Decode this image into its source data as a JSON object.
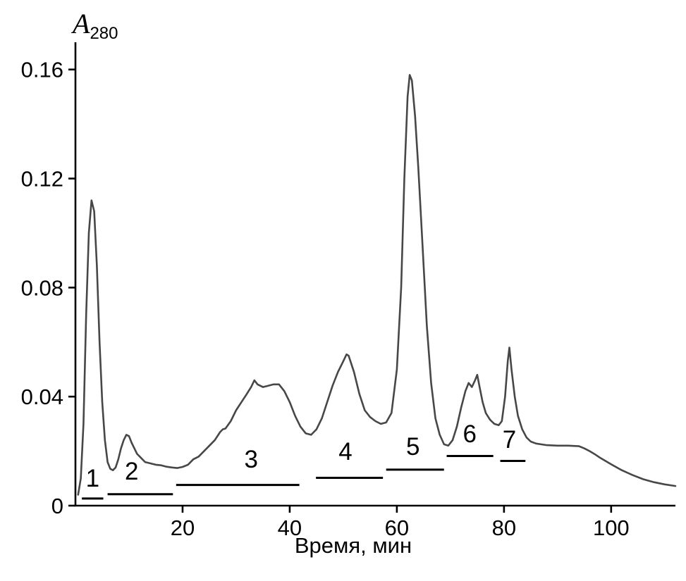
{
  "chart_data": {
    "type": "line",
    "title": "",
    "ylabel": {
      "main": "A",
      "sub": "280"
    },
    "xlabel": "Время, мин",
    "x_range": [
      0,
      112
    ],
    "y_range": [
      0,
      0.17
    ],
    "x_ticks": [
      20,
      40,
      60,
      80,
      100
    ],
    "y_ticks": [
      0,
      0.04,
      0.08,
      0.12,
      0.16
    ],
    "y_tick_labels": [
      "0",
      "0.04",
      "0.08",
      "0.12",
      "0.16"
    ],
    "grid": false,
    "legend": "none",
    "axis_color": "#000000",
    "line_color": "#474747",
    "series": [
      {
        "name": "A280 absorbance",
        "points": [
          [
            0.5,
            0.004
          ],
          [
            1,
            0.01
          ],
          [
            1.5,
            0.03
          ],
          [
            2,
            0.07
          ],
          [
            2.5,
            0.1
          ],
          [
            3,
            0.112
          ],
          [
            3.5,
            0.108
          ],
          [
            4,
            0.088
          ],
          [
            4.5,
            0.06
          ],
          [
            5,
            0.038
          ],
          [
            5.5,
            0.024
          ],
          [
            6,
            0.016
          ],
          [
            6.5,
            0.0135
          ],
          [
            7,
            0.013
          ],
          [
            7.5,
            0.014
          ],
          [
            8,
            0.017
          ],
          [
            8.5,
            0.021
          ],
          [
            9,
            0.024
          ],
          [
            9.5,
            0.026
          ],
          [
            10,
            0.0255
          ],
          [
            10.5,
            0.023
          ],
          [
            11,
            0.021
          ],
          [
            11.5,
            0.019
          ],
          [
            12,
            0.018
          ],
          [
            13,
            0.016
          ],
          [
            14,
            0.0155
          ],
          [
            15,
            0.015
          ],
          [
            16,
            0.0148
          ],
          [
            17,
            0.0143
          ],
          [
            18,
            0.014
          ],
          [
            19,
            0.0138
          ],
          [
            20,
            0.0142
          ],
          [
            21,
            0.015
          ],
          [
            22,
            0.017
          ],
          [
            23,
            0.018
          ],
          [
            24,
            0.02
          ],
          [
            25,
            0.022
          ],
          [
            26,
            0.024
          ],
          [
            27,
            0.027
          ],
          [
            27.5,
            0.028
          ],
          [
            28,
            0.0283
          ],
          [
            29,
            0.031
          ],
          [
            30,
            0.035
          ],
          [
            31,
            0.038
          ],
          [
            32,
            0.041
          ],
          [
            32.8,
            0.0435
          ],
          [
            33.4,
            0.046
          ],
          [
            34,
            0.0445
          ],
          [
            35,
            0.0435
          ],
          [
            36,
            0.044
          ],
          [
            37,
            0.0445
          ],
          [
            38,
            0.0445
          ],
          [
            39,
            0.042
          ],
          [
            40,
            0.038
          ],
          [
            41,
            0.033
          ],
          [
            42,
            0.029
          ],
          [
            43,
            0.0265
          ],
          [
            44,
            0.026
          ],
          [
            45,
            0.028
          ],
          [
            46,
            0.032
          ],
          [
            47,
            0.038
          ],
          [
            48,
            0.044
          ],
          [
            49,
            0.049
          ],
          [
            50,
            0.053
          ],
          [
            50.6,
            0.0555
          ],
          [
            51,
            0.055
          ],
          [
            52,
            0.049
          ],
          [
            53,
            0.041
          ],
          [
            54,
            0.035
          ],
          [
            55,
            0.0325
          ],
          [
            56,
            0.031
          ],
          [
            57,
            0.03
          ],
          [
            58,
            0.0305
          ],
          [
            59,
            0.034
          ],
          [
            60,
            0.05
          ],
          [
            60.8,
            0.08
          ],
          [
            61.4,
            0.12
          ],
          [
            62,
            0.15
          ],
          [
            62.4,
            0.158
          ],
          [
            62.8,
            0.156
          ],
          [
            63.4,
            0.143
          ],
          [
            64,
            0.124
          ],
          [
            64.8,
            0.095
          ],
          [
            65.6,
            0.066
          ],
          [
            66.4,
            0.045
          ],
          [
            67.2,
            0.032
          ],
          [
            68,
            0.026
          ],
          [
            68.8,
            0.0225
          ],
          [
            69.6,
            0.022
          ],
          [
            70.4,
            0.024
          ],
          [
            71.2,
            0.029
          ],
          [
            72,
            0.036
          ],
          [
            72.8,
            0.042
          ],
          [
            73.4,
            0.045
          ],
          [
            74,
            0.0435
          ],
          [
            74.6,
            0.046
          ],
          [
            75,
            0.048
          ],
          [
            75.4,
            0.044
          ],
          [
            76,
            0.038
          ],
          [
            76.6,
            0.034
          ],
          [
            77.4,
            0.0315
          ],
          [
            78.2,
            0.03
          ],
          [
            79,
            0.0295
          ],
          [
            79.6,
            0.031
          ],
          [
            80.2,
            0.04
          ],
          [
            80.7,
            0.053
          ],
          [
            81,
            0.058
          ],
          [
            81.4,
            0.05
          ],
          [
            82,
            0.04
          ],
          [
            82.6,
            0.033
          ],
          [
            83.4,
            0.028
          ],
          [
            84.2,
            0.025
          ],
          [
            85,
            0.0235
          ],
          [
            86,
            0.0228
          ],
          [
            88,
            0.0222
          ],
          [
            90,
            0.022
          ],
          [
            92,
            0.022
          ],
          [
            94,
            0.0218
          ],
          [
            95,
            0.021
          ],
          [
            96,
            0.02
          ],
          [
            97,
            0.0188
          ],
          [
            98,
            0.0175
          ],
          [
            100,
            0.0152
          ],
          [
            102,
            0.013
          ],
          [
            104,
            0.0112
          ],
          [
            106,
            0.0097
          ],
          [
            108,
            0.0086
          ],
          [
            110,
            0.0078
          ],
          [
            112,
            0.0072
          ]
        ]
      }
    ],
    "fractions": [
      {
        "label": "1",
        "start": 1.2,
        "end": 5.2,
        "bar_y": 0.0026,
        "label_x": 3.2,
        "label_y": 0.007
      },
      {
        "label": "2",
        "start": 6.0,
        "end": 18.2,
        "bar_y": 0.0042,
        "label_x": 10.5,
        "label_y": 0.0095
      },
      {
        "label": "3",
        "start": 18.8,
        "end": 41.8,
        "bar_y": 0.0076,
        "label_x": 32.8,
        "label_y": 0.014
      },
      {
        "label": "4",
        "start": 44.9,
        "end": 57.4,
        "bar_y": 0.0102,
        "label_x": 50.4,
        "label_y": 0.0168
      },
      {
        "label": "5",
        "start": 58.0,
        "end": 68.8,
        "bar_y": 0.0132,
        "label_x": 63.0,
        "label_y": 0.0186
      },
      {
        "label": "6",
        "start": 69.3,
        "end": 78.0,
        "bar_y": 0.0182,
        "label_x": 73.6,
        "label_y": 0.0232
      },
      {
        "label": "7",
        "start": 79.3,
        "end": 84.0,
        "bar_y": 0.0164,
        "label_x": 81.0,
        "label_y": 0.0212
      }
    ]
  }
}
